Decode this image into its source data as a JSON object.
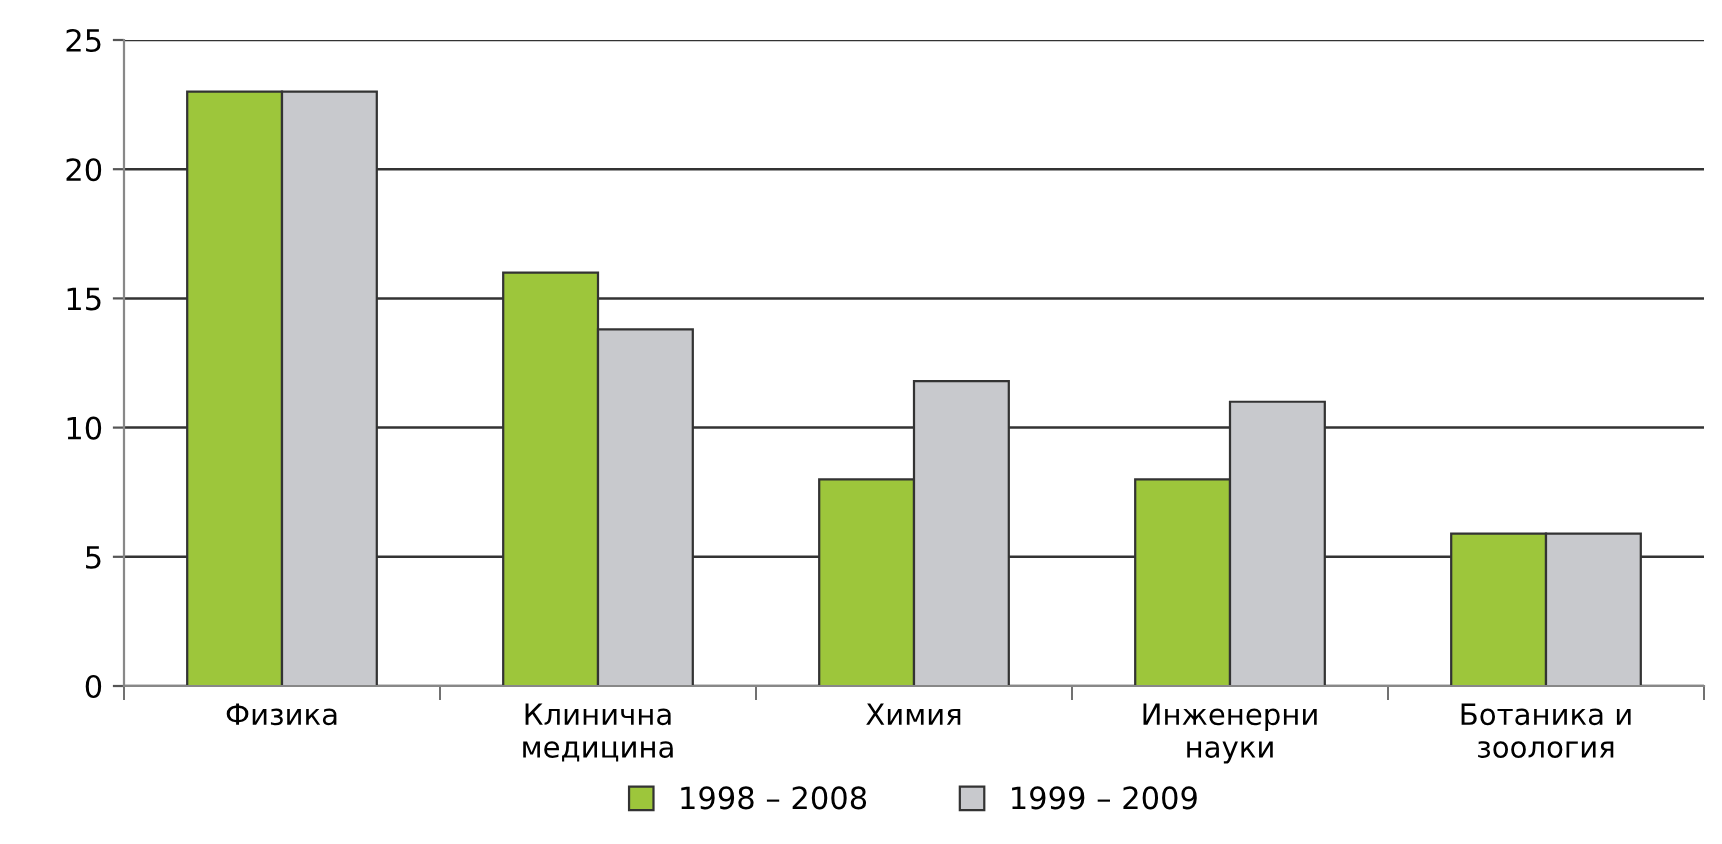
{
  "chart_data": {
    "type": "bar",
    "categories": [
      "Физика",
      "Клинична\nмедицина",
      "Химия",
      "Инженерни\nнауки",
      "Ботаника и\nзоология"
    ],
    "series": [
      {
        "name": "1998 – 2008",
        "color": "#9dc63b",
        "values": [
          23,
          16,
          8,
          8,
          5.9
        ]
      },
      {
        "name": "1999 – 2009",
        "color": "#c8c9cd",
        "values": [
          23,
          13.8,
          11.8,
          11,
          5.9
        ]
      }
    ],
    "ylim": [
      0,
      25
    ],
    "yticks": [
      0,
      5,
      10,
      15,
      20,
      25
    ],
    "grid": "y",
    "legend": "bottom"
  }
}
